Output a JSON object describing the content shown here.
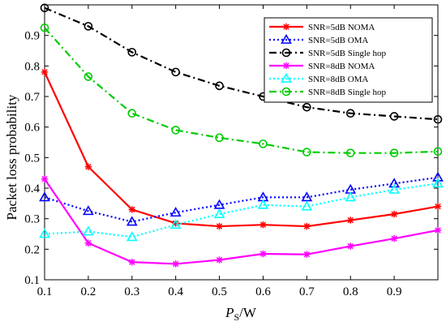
{
  "chart_data": {
    "type": "line",
    "x": [
      0.1,
      0.2,
      0.3,
      0.4,
      0.5,
      0.6,
      0.7,
      0.8,
      0.9,
      1.0
    ],
    "xlim": [
      0.1,
      1.0
    ],
    "ylim": [
      0.1,
      1.0
    ],
    "xticks": [
      "0.1",
      "0.2",
      "0.3",
      "0.4",
      "0.5",
      "0.6",
      "0.7",
      "0.8",
      "0.9"
    ],
    "yticks": [
      "0.1",
      "0.2",
      "0.3",
      "0.4",
      "0.5",
      "0.6",
      "0.7",
      "0.8",
      "0.9"
    ],
    "xlabel_main": "P",
    "xlabel_sub": "S",
    "xlabel_unit": "/W",
    "ylabel": "Packet loss probability",
    "grid": false,
    "legend_position": "top-right",
    "series": [
      {
        "name": "SNR=5dB NOMA",
        "color": "#ff0000",
        "dash": "solid",
        "marker": "asterisk",
        "values": [
          0.78,
          0.47,
          0.33,
          0.285,
          0.275,
          0.28,
          0.275,
          0.295,
          0.315,
          0.34
        ]
      },
      {
        "name": "SNR=5dB OMA",
        "color": "#0000ff",
        "dash": "dotted",
        "marker": "triangle",
        "values": [
          0.37,
          0.325,
          0.29,
          0.32,
          0.345,
          0.37,
          0.37,
          0.395,
          0.415,
          0.435
        ]
      },
      {
        "name": "SNR=5dB Single hop",
        "color": "#000000",
        "dash": "dashdot",
        "marker": "circle",
        "values": [
          0.99,
          0.93,
          0.845,
          0.78,
          0.735,
          0.7,
          0.665,
          0.645,
          0.635,
          0.625
        ]
      },
      {
        "name": "SNR=8dB NOMA",
        "color": "#ff00ff",
        "dash": "solid",
        "marker": "asterisk",
        "values": [
          0.43,
          0.22,
          0.158,
          0.152,
          0.165,
          0.185,
          0.183,
          0.21,
          0.235,
          0.262
        ]
      },
      {
        "name": "SNR=8dB OMA",
        "color": "#00ffff",
        "dash": "dotted",
        "marker": "triangle",
        "values": [
          0.25,
          0.258,
          0.24,
          0.28,
          0.315,
          0.345,
          0.34,
          0.37,
          0.395,
          0.415
        ]
      },
      {
        "name": "SNR=8dB Single hop",
        "color": "#00cc00",
        "dash": "dashdot",
        "marker": "circle",
        "values": [
          0.925,
          0.765,
          0.645,
          0.59,
          0.565,
          0.545,
          0.518,
          0.515,
          0.515,
          0.52
        ]
      }
    ]
  }
}
